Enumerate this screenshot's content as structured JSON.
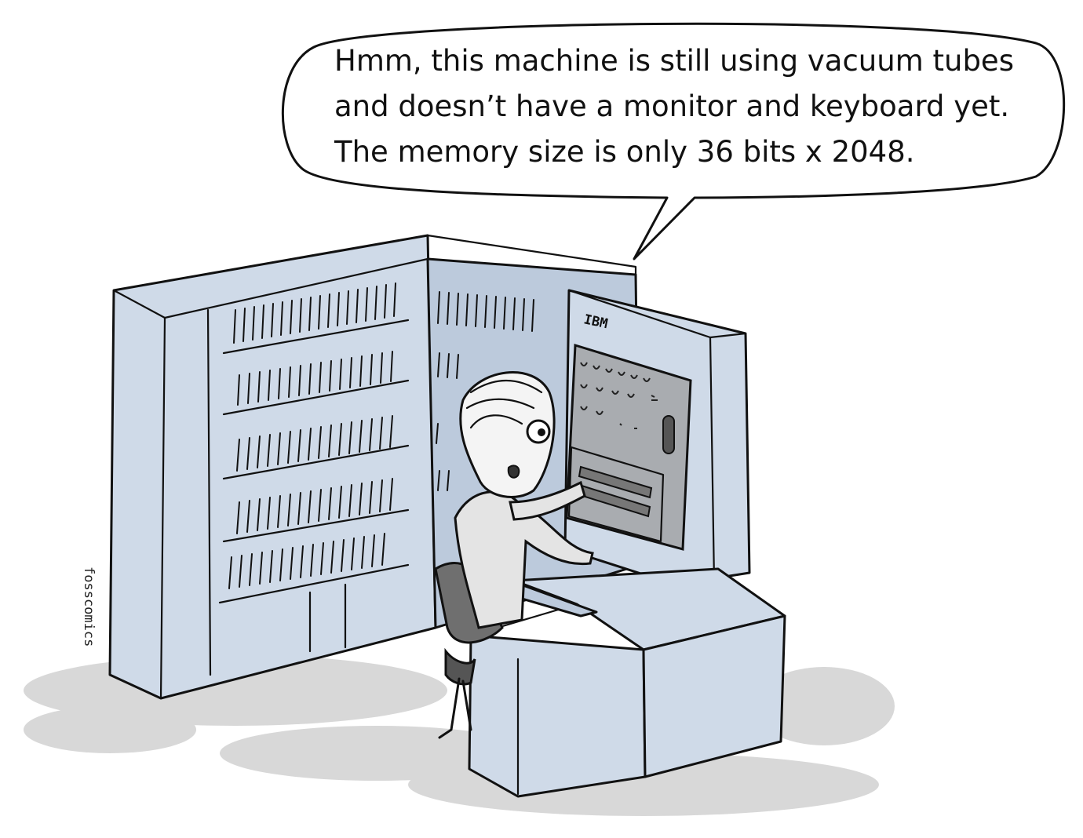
{
  "speech_bubble": {
    "lines": [
      "Hmm, this machine is still using vacuum tubes",
      "and doesn’t have a monitor and keyboard yet.",
      "The memory size is only 36 bits x 2048."
    ]
  },
  "machine": {
    "brand_label": "IBM"
  },
  "credit": {
    "text": "fosscomics"
  },
  "colors": {
    "cabinet": "#cfdae8",
    "panel": "#a9acb0",
    "shadow": "#d8d8d8",
    "ink": "#111111"
  }
}
